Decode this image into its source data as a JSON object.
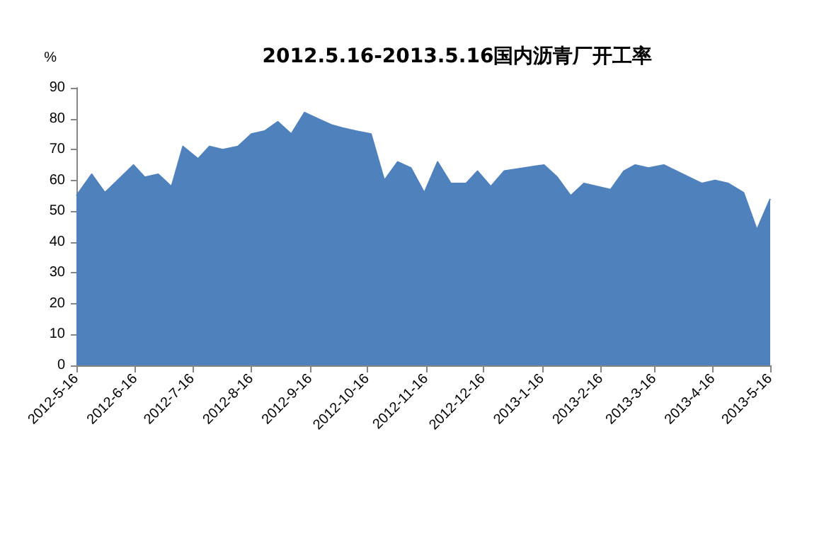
{
  "chart_data": {
    "type": "area",
    "title": "2012.5.16-2013.5.16国内沥青厂开工率",
    "ylabel": "%",
    "x": [
      "2012-05-16",
      "2012-05-24",
      "2012-05-31",
      "2012-06-15",
      "2012-06-21",
      "2012-06-28",
      "2012-07-05",
      "2012-07-11",
      "2012-07-19",
      "2012-07-25",
      "2012-08-01",
      "2012-08-09",
      "2012-08-16",
      "2012-08-23",
      "2012-08-30",
      "2012-09-06",
      "2012-09-13",
      "2012-09-20",
      "2012-09-27",
      "2012-10-03",
      "2012-10-10",
      "2012-10-18",
      "2012-10-25",
      "2012-11-01",
      "2012-11-08",
      "2012-11-15",
      "2012-11-22",
      "2012-11-29",
      "2012-12-07",
      "2012-12-13",
      "2012-12-20",
      "2012-12-27",
      "2013-01-17",
      "2013-01-24",
      "2013-01-31",
      "2013-02-07",
      "2013-02-21",
      "2013-02-28",
      "2013-03-06",
      "2013-03-13",
      "2013-03-21",
      "2013-04-10",
      "2013-04-17",
      "2013-04-24",
      "2013-05-02",
      "2013-05-09",
      "2013-05-16"
    ],
    "series": [
      {
        "color": "#4f81bd",
        "values": [
          55,
          62,
          56,
          65,
          61,
          62,
          58,
          71,
          67,
          71,
          70,
          71,
          75,
          76,
          79,
          75,
          82,
          80,
          78,
          77,
          76,
          75,
          60,
          66,
          64,
          56,
          66,
          59,
          59,
          63,
          58,
          63,
          65,
          61,
          55,
          59,
          57,
          63,
          65,
          64,
          65,
          59,
          60,
          59,
          56,
          44,
          54
        ]
      }
    ],
    "xlim": [
      "2012-05-16",
      "2013-05-16"
    ],
    "xticks": [
      {
        "value": "2012-05-16",
        "label": "2012-5-16"
      },
      {
        "value": "2012-06-16",
        "label": "2012-6-16"
      },
      {
        "value": "2012-07-16",
        "label": "2012-7-16"
      },
      {
        "value": "2012-08-16",
        "label": "2012-8-16"
      },
      {
        "value": "2012-09-16",
        "label": "2012-9-16"
      },
      {
        "value": "2012-10-16",
        "label": "2012-10-16"
      },
      {
        "value": "2012-11-16",
        "label": "2012-11-16"
      },
      {
        "value": "2012-12-16",
        "label": "2012-12-16"
      },
      {
        "value": "2013-01-16",
        "label": "2013-1-16"
      },
      {
        "value": "2013-02-16",
        "label": "2013-2-16"
      },
      {
        "value": "2013-03-16",
        "label": "2013-3-16"
      },
      {
        "value": "2013-04-16",
        "label": "2013-4-16"
      },
      {
        "value": "2013-05-16",
        "label": "2013-5-16"
      }
    ],
    "ylim": [
      0,
      90
    ],
    "yticks": [
      0,
      10,
      20,
      30,
      40,
      50,
      60,
      70,
      80,
      90
    ],
    "grid": false
  }
}
